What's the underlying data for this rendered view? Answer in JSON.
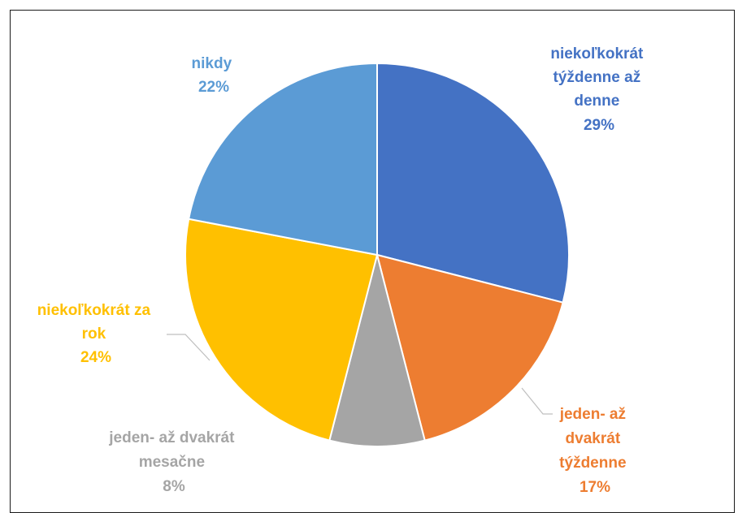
{
  "chart_data": {
    "type": "pie",
    "title": "",
    "slices": [
      {
        "label_lines": [
          "niekoľkokrát",
          "týždenne až",
          "denne"
        ],
        "percent_label": "29%",
        "value": 29,
        "color": "#4472c4"
      },
      {
        "label_lines": [
          "jeden- až",
          "dvakrát",
          "týždenne"
        ],
        "percent_label": "17%",
        "value": 17,
        "color": "#ed7d31"
      },
      {
        "label_lines": [
          "jeden- až dvakrát",
          "mesačne"
        ],
        "percent_label": "8%",
        "value": 8,
        "color": "#a5a5a5"
      },
      {
        "label_lines": [
          "niekoľkokrát za",
          "rok"
        ],
        "percent_label": "24%",
        "value": 24,
        "color": "#ffc000"
      },
      {
        "label_lines": [
          "nikdy"
        ],
        "percent_label": "22%",
        "value": 22,
        "color": "#5b9bd5"
      }
    ],
    "legend": "none",
    "start_angle": "12 o'clock",
    "direction": "clockwise"
  }
}
